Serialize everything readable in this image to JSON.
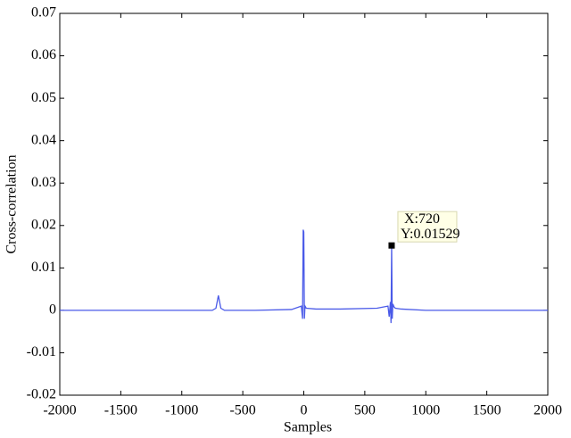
{
  "chart_data": {
    "type": "line",
    "xlabel": "Samples",
    "ylabel": "Cross-correlation",
    "x": [
      -2000,
      -1000,
      -750,
      -720,
      -700,
      -680,
      -650,
      -400,
      -100,
      -20,
      -10,
      -5,
      0,
      5,
      10,
      20,
      100,
      300,
      600,
      690,
      700,
      710,
      715,
      720,
      725,
      730,
      740,
      750,
      800,
      1000,
      1500,
      2000
    ],
    "series": [
      {
        "color": "#4a5ae8",
        "values": [
          0,
          0,
          0,
          0.0005,
          0.0035,
          0.0005,
          0,
          0,
          0.0002,
          0.001,
          -0.002,
          0.019,
          0.0185,
          -0.002,
          0.001,
          0.0005,
          0.0003,
          0.0003,
          0.0005,
          0.001,
          -0.0015,
          0.002,
          -0.003,
          0.01529,
          -0.002,
          0.0015,
          0.0008,
          0.0005,
          0.0003,
          0,
          0,
          0
        ]
      }
    ],
    "xlim": [
      -2000,
      2000
    ],
    "xticks": [
      -2000,
      -1500,
      -1000,
      -500,
      0,
      500,
      1000,
      1500,
      2000
    ],
    "ylim": [
      -0.02,
      0.07
    ],
    "yticks": [
      -0.02,
      -0.01,
      0,
      0.01,
      0.02,
      0.03,
      0.04,
      0.05,
      0.06,
      0.07
    ],
    "grid": false,
    "annotation": {
      "x": 720,
      "y": 0.01529,
      "lines": [
        "X:720",
        "Y:0.01529"
      ]
    }
  }
}
